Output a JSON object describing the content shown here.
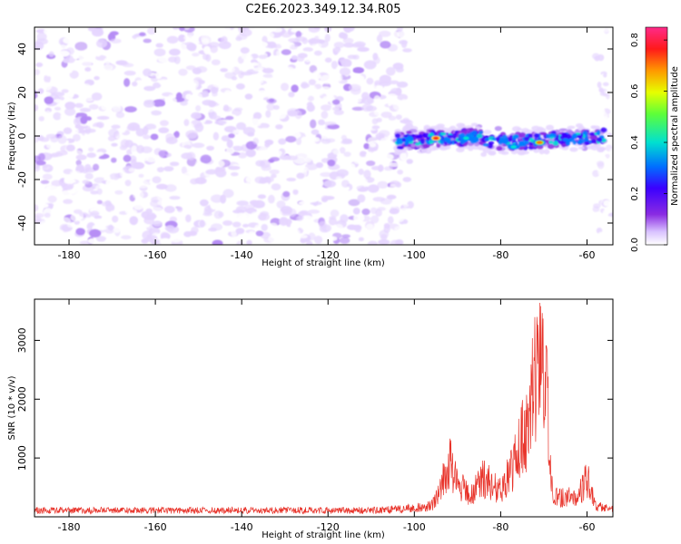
{
  "figure": {
    "title": "C2E6.2023.349.12.34.R05"
  },
  "colors": {
    "snr_line": "#e8332a",
    "cmap": [
      "#ffffff",
      "#e6d6ff",
      "#b58cf5",
      "#8a2be2",
      "#3b00ff",
      "#0080ff",
      "#00e5d0",
      "#7fff00",
      "#ffe600",
      "#ff7700",
      "#ff1a1a",
      "#ff2a8a"
    ]
  },
  "chart_data": [
    {
      "type": "heatmap",
      "xlabel": "Height of straight line (km)",
      "ylabel": "Frequency (Hz)",
      "xlim": [
        -188,
        -54
      ],
      "ylim": [
        -50,
        50
      ],
      "xticks": [
        -180,
        -160,
        -140,
        -120,
        -100,
        -80,
        -60
      ],
      "yticks": [
        -40,
        -20,
        0,
        20,
        40
      ],
      "colorbar": {
        "label": "Normalized spectral amplitude",
        "range": [
          0,
          0.85
        ],
        "ticks": [
          "0.0",
          "0.2",
          "0.4",
          "0.6",
          "0.8"
        ]
      },
      "features": {
        "noise_region_x": [
          -188,
          -101
        ],
        "right_edge_noise_x": [
          -58,
          -54
        ],
        "signal_band": {
          "x_start": -104,
          "x_end": -56,
          "freq_start": -2,
          "freq_end": 2,
          "peaks": [
            {
              "x": -95,
              "freq": -1,
              "amplitude": 0.8
            },
            {
              "x": -71,
              "freq": -3,
              "amplitude": 0.72
            },
            {
              "x": -77,
              "freq": -5,
              "amplitude": 0.5
            },
            {
              "x": -88,
              "freq": -1,
              "amplitude": 0.45
            }
          ]
        }
      }
    },
    {
      "type": "line",
      "xlabel": "Height of straight line (km)",
      "ylabel": "SNR (10 * v/v)",
      "xlim": [
        -188,
        -54
      ],
      "ylim": [
        0,
        3700
      ],
      "xticks": [
        -180,
        -160,
        -140,
        -120,
        -100,
        -80,
        -60
      ],
      "yticks": [
        1000,
        2000,
        3000
      ],
      "series": [
        {
          "profile": [
            {
              "x": -188,
              "y": 150
            },
            {
              "x": -110,
              "y": 150
            },
            {
              "x": -100,
              "y": 200
            },
            {
              "x": -96,
              "y": 260
            },
            {
              "x": -94,
              "y": 600
            },
            {
              "x": -92,
              "y": 1320
            },
            {
              "x": -90,
              "y": 800
            },
            {
              "x": -87,
              "y": 500
            },
            {
              "x": -84,
              "y": 900
            },
            {
              "x": -80,
              "y": 600
            },
            {
              "x": -77,
              "y": 1200
            },
            {
              "x": -75,
              "y": 1800
            },
            {
              "x": -73,
              "y": 2500
            },
            {
              "x": -72,
              "y": 3500
            },
            {
              "x": -71,
              "y": 3750
            },
            {
              "x": -70,
              "y": 3200
            },
            {
              "x": -69,
              "y": 2600
            },
            {
              "x": -68,
              "y": 500
            },
            {
              "x": -66,
              "y": 450
            },
            {
              "x": -62,
              "y": 500
            },
            {
              "x": -60,
              "y": 900
            },
            {
              "x": -58,
              "y": 250
            },
            {
              "x": -54,
              "y": 180
            }
          ]
        }
      ]
    }
  ]
}
